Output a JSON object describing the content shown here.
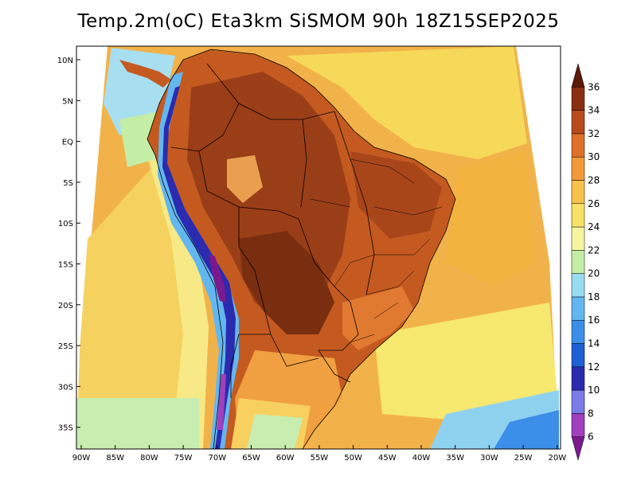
{
  "title": "Temp.2m(oC) Eta3km SiSMOM 90h 18Z15SEP2025",
  "lat_labels": [
    "10N",
    "5N",
    "EQ",
    "5S",
    "10S",
    "15S",
    "20S",
    "25S",
    "30S",
    "35S"
  ],
  "lon_labels": [
    "90W",
    "85W",
    "80W",
    "75W",
    "70W",
    "65W",
    "60W",
    "55W",
    "50W",
    "45W",
    "40W",
    "35W",
    "30W",
    "25W",
    "20W"
  ],
  "colorbar": {
    "labels": [
      "6",
      "8",
      "10",
      "12",
      "14",
      "16",
      "18",
      "20",
      "22",
      "24",
      "26",
      "28",
      "30",
      "32",
      "34",
      "36"
    ],
    "colors": [
      "#7a1a8e",
      "#a13fbf",
      "#7b7be8",
      "#2b2bb0",
      "#1f5fd6",
      "#3c8fe8",
      "#63b7f0",
      "#99dcf2",
      "#c4eea6",
      "#f5f5a0",
      "#f7e266",
      "#f7c24a",
      "#f29a38",
      "#e07028",
      "#b94a1c",
      "#8a2e12",
      "#5c1a08"
    ]
  }
}
